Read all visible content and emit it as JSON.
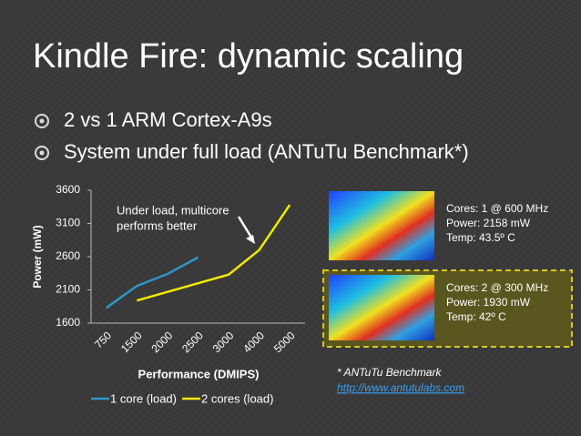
{
  "title": "Kindle Fire: dynamic scaling",
  "bullets": [
    "2 vs 1 ARM Cortex-A9s",
    "System under full load (ANTuTu Benchmark*)"
  ],
  "chart_data": {
    "type": "line",
    "categories": [
      "750",
      "1500",
      "2000",
      "2500",
      "3000",
      "4000",
      "5000"
    ],
    "series": [
      {
        "name": "1 core (load)",
        "color": "#2f95c9",
        "values": [
          1830,
          2160,
          2340,
          2590,
          null,
          null,
          null
        ]
      },
      {
        "name": "2 cores (load)",
        "color": "#f2ea00",
        "values": [
          null,
          1940,
          2070,
          2200,
          2330,
          2700,
          3380
        ]
      }
    ],
    "ylim": [
      1600,
      3600
    ],
    "yticks": [
      1600,
      2100,
      2600,
      3100,
      3600
    ],
    "y_label": "Power (mW)",
    "x_label": "Performance (DMIPS)",
    "annotation": [
      "Under load, multicore",
      "performs better"
    ],
    "legend": "bottom"
  },
  "panels": [
    {
      "lines": [
        "Cores: 1 @ 600 MHz",
        "Power: 2158 mW",
        "Temp: 43.5º C"
      ]
    },
    {
      "lines": [
        "Cores: 2 @ 300 MHz",
        "Power: 1930 mW",
        "Temp: 42º C"
      ]
    }
  ],
  "footnote": "* ANTuTu Benchmark",
  "link": "http://www.antutulabs.com"
}
